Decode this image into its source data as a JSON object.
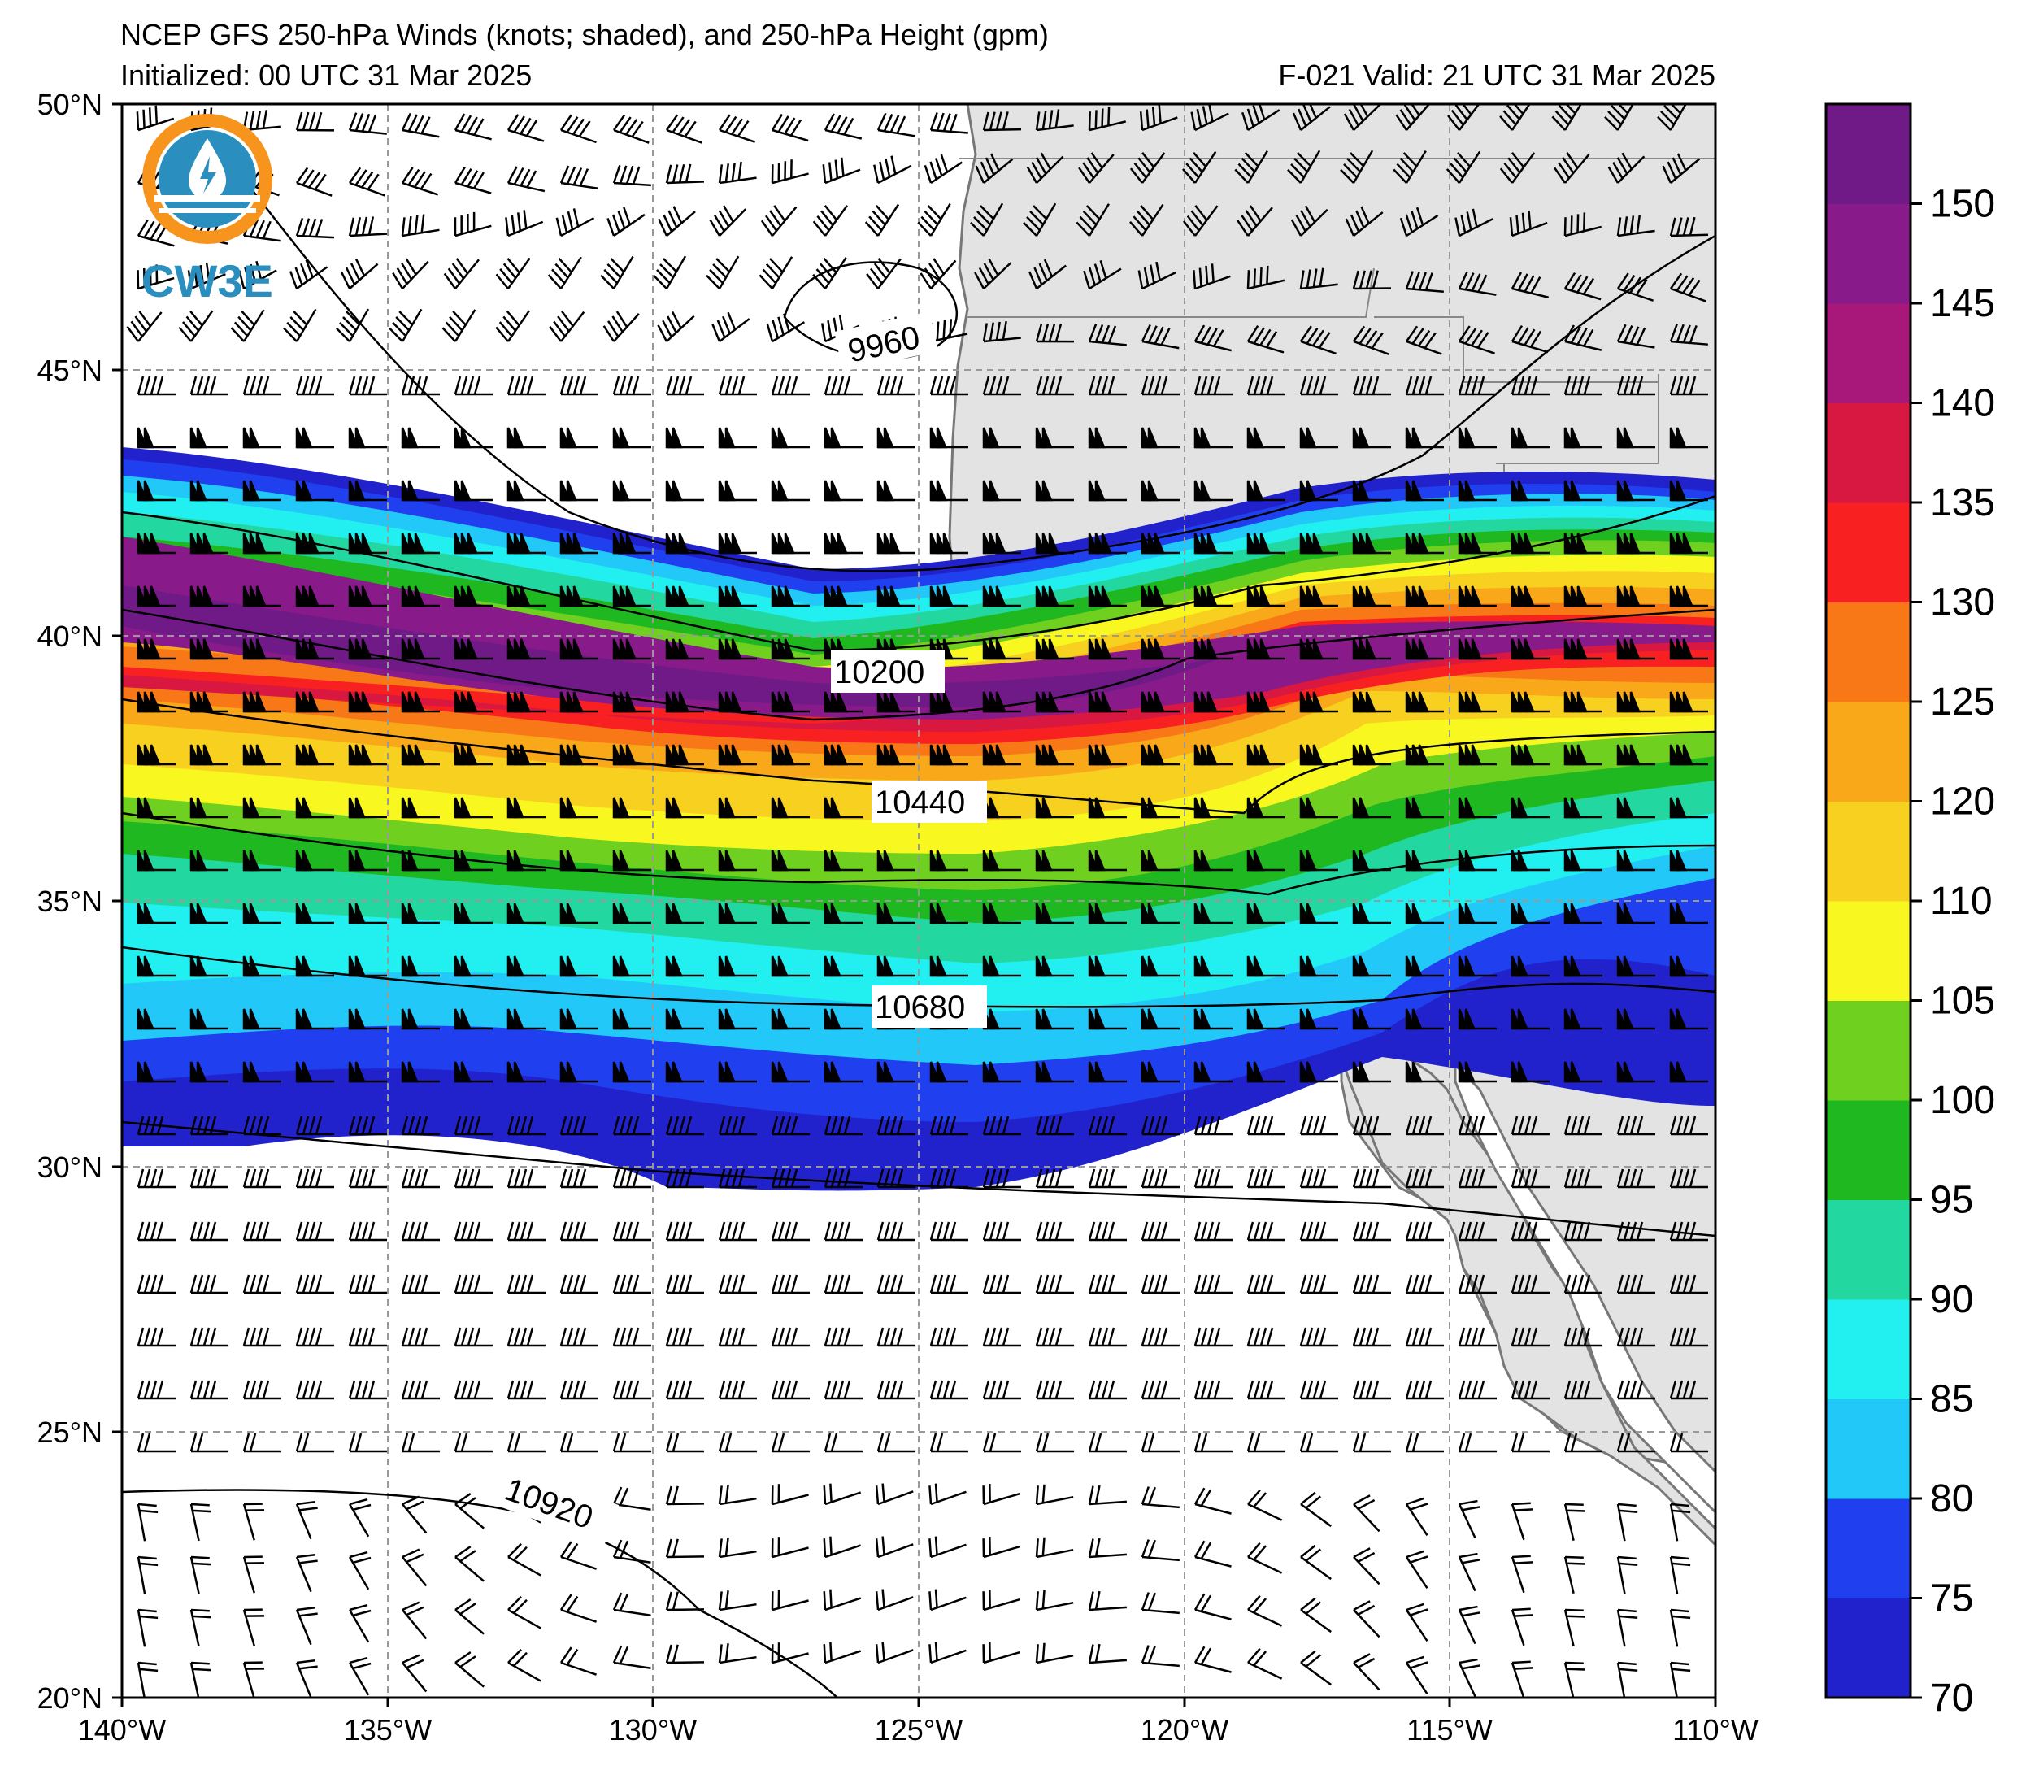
{
  "header": {
    "title": "NCEP GFS 250-hPa Winds (knots; shaded), and 250-hPa Height (gpm)",
    "initialized": "Initialized: 00 UTC 31 Mar 2025",
    "valid": "F-021  Valid: 21 UTC 31 Mar 2025"
  },
  "logo": {
    "text": "CW3E",
    "color": "#2a8fbf",
    "ring_color": "#f7941d"
  },
  "map": {
    "lat_labels": [
      "50°N",
      "45°N",
      "40°N",
      "35°N",
      "30°N",
      "25°N",
      "20°N"
    ],
    "lon_labels": [
      "140°W",
      "135°W",
      "130°W",
      "125°W",
      "120°W",
      "115°W",
      "110°W"
    ],
    "land_color": "#e3e3e3",
    "contours": [
      {
        "label": "9960",
        "value": 9960
      },
      {
        "label": "10200",
        "value": 10200
      },
      {
        "label": "10440",
        "value": 10440
      },
      {
        "label": "10680",
        "value": 10680
      },
      {
        "label": "10920",
        "value": 10920
      }
    ]
  },
  "colorbar": {
    "ticks": [
      "70",
      "75",
      "80",
      "85",
      "90",
      "95",
      "100",
      "105",
      "110",
      "120",
      "125",
      "130",
      "135",
      "140",
      "145",
      "150"
    ],
    "colors": [
      "#2222cc",
      "#2040f0",
      "#22c8f8",
      "#22f0f0",
      "#22d8a0",
      "#20b820",
      "#70d020",
      "#f8f820",
      "#f8d020",
      "#f8a818",
      "#f87818",
      "#f82020",
      "#d81840",
      "#a8187a",
      "#881a8a",
      "#701a88"
    ]
  }
}
